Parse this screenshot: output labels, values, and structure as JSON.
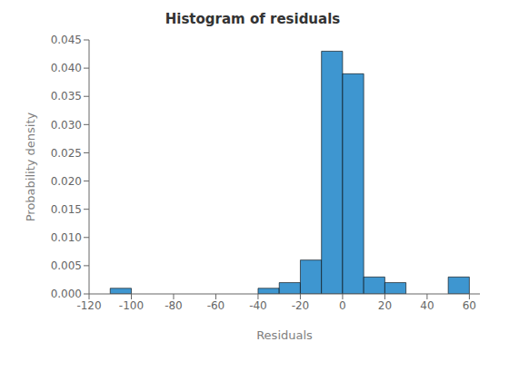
{
  "chart_data": {
    "type": "histogram",
    "title": "Histogram of residuals",
    "x_label": "Residuals",
    "y_label": "Probability density",
    "color": "#3E96D0",
    "bins": [
      -110,
      -100,
      -90,
      -80,
      -70,
      -60,
      -50,
      -40,
      -30,
      -20,
      -10,
      0,
      10,
      20,
      30,
      40,
      50,
      60
    ],
    "values": [
      0.001,
      0,
      0,
      0,
      0,
      0,
      0,
      0.001,
      0.002,
      0.006,
      0.043,
      0.039,
      0.003,
      0.002,
      0,
      0,
      0.003
    ],
    "xlim": [
      -120,
      65
    ],
    "ylim": [
      0,
      0.045
    ],
    "xticks": [
      -120,
      -100,
      -80,
      -60,
      -40,
      -20,
      0,
      20,
      40,
      60
    ],
    "yticks": [
      {
        "value": 0,
        "label": "0.000"
      },
      {
        "value": 0.005,
        "label": "0.005"
      },
      {
        "value": 0.01,
        "label": "0.010"
      },
      {
        "value": 0.015,
        "label": "0.015"
      },
      {
        "value": 0.02,
        "label": "0.020"
      },
      {
        "value": 0.025,
        "label": "0.025"
      },
      {
        "value": 0.03,
        "label": "0.030"
      },
      {
        "value": 0.035,
        "label": "0.035"
      },
      {
        "value": 0.04,
        "label": "0.040"
      },
      {
        "value": 0.045,
        "label": "0.045"
      }
    ],
    "grid": false
  }
}
